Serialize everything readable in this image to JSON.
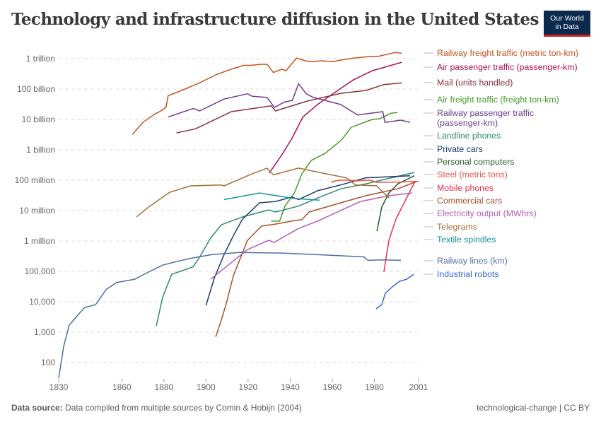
{
  "title": "Technology and infrastructure diffusion in the United States",
  "logo": {
    "line1": "Our World",
    "line2": "in Data",
    "bg": "#0b2a4e",
    "accent": "#ce261e"
  },
  "footer": {
    "source_label": "Data source:",
    "source_text": "Data compiled from multiple sources by Comin & Hobijn (2004)",
    "right": "technological-change | CC BY"
  },
  "chart_data": {
    "type": "line",
    "title": "Technology and infrastructure diffusion in the United States",
    "y_scale": "log",
    "ylim": [
      100,
      1000000000000
    ],
    "xlim": [
      1830,
      2001
    ],
    "grid": "horizontal dashed",
    "legend": "right (line-end labels)",
    "y_ticks": [
      {
        "value": 1000000000000,
        "label": "1 trillion"
      },
      {
        "value": 100000000000,
        "label": "100 billion"
      },
      {
        "value": 10000000000,
        "label": "10 billion"
      },
      {
        "value": 1000000000,
        "label": "1 billion"
      },
      {
        "value": 100000000,
        "label": "100 million"
      },
      {
        "value": 10000000,
        "label": "10 million"
      },
      {
        "value": 1000000,
        "label": "1 million"
      },
      {
        "value": 100000,
        "label": "100,000"
      },
      {
        "value": 10000,
        "label": "10,000"
      },
      {
        "value": 1000,
        "label": "1,000"
      },
      {
        "value": 100,
        "label": "100"
      }
    ],
    "x_ticks": [
      "1830",
      "1860",
      "1880",
      "1900",
      "1920",
      "1940",
      "1960",
      "1980",
      "2001"
    ],
    "series": [
      {
        "name": "Railway freight traffic (metric ton-km)",
        "color": "#c5531e",
        "points": [
          [
            1865,
            3200000000.0
          ],
          [
            1870,
            8000000000.0
          ],
          [
            1875,
            14000000000.0
          ],
          [
            1879,
            20000000000.0
          ],
          [
            1881,
            25000000000.0
          ],
          [
            1882,
            60000000000.0
          ],
          [
            1890,
            100000000000.0
          ],
          [
            1897,
            160000000000.0
          ],
          [
            1905,
            300000000000.0
          ],
          [
            1912,
            450000000000.0
          ],
          [
            1918,
            600000000000.0
          ],
          [
            1921,
            600000000000.0
          ],
          [
            1926,
            650000000000.0
          ],
          [
            1929,
            650000000000.0
          ],
          [
            1932,
            350000000000.0
          ],
          [
            1936,
            450000000000.0
          ],
          [
            1938,
            400000000000.0
          ],
          [
            1943,
            1050000000000.0
          ],
          [
            1947,
            850000000000.0
          ],
          [
            1950,
            800000000000.0
          ],
          [
            1955,
            850000000000.0
          ],
          [
            1960,
            800000000000.0
          ],
          [
            1968,
            1000000000000.0
          ],
          [
            1976,
            1150000000000.0
          ],
          [
            1982,
            1200000000000.0
          ],
          [
            1990,
            1600000000000.0
          ],
          [
            1993,
            1500000000000.0
          ]
        ]
      },
      {
        "name": "Air passenger traffic (passenger-km)",
        "color": "#a8105a",
        "points": [
          [
            1930,
            170000000.0
          ],
          [
            1936.5,
            760000000.0
          ],
          [
            1941,
            2500000000.0
          ],
          [
            1946,
            12000000000.0
          ],
          [
            1953,
            31000000000.0
          ],
          [
            1964,
            105000000000.0
          ],
          [
            1970,
            200000000000.0
          ],
          [
            1979,
            400000000000.0
          ],
          [
            1993,
            760000000000.0
          ]
        ]
      },
      {
        "name": "Mail (units handled)",
        "color": "#883039",
        "points": [
          [
            1886,
            3600000000.0
          ],
          [
            1895,
            4900000000.0
          ],
          [
            1912,
            18000000000.0
          ],
          [
            1931,
            28000000000.0
          ],
          [
            1933,
            19000000000.0
          ],
          [
            1948,
            40000000000.0
          ],
          [
            1964,
            72000000000.0
          ],
          [
            1976,
            90000000000.0
          ],
          [
            1984.5,
            140000000000.0
          ],
          [
            1993,
            160000000000.0
          ]
        ]
      },
      {
        "name": "Air freight traffic (freight ton-km)",
        "color": "#4c9a2a",
        "points": [
          [
            1931,
            4500000.0
          ],
          [
            1935,
            4500000.0
          ],
          [
            1937.5,
            14000000.0
          ],
          [
            1942,
            38000000.0
          ],
          [
            1945.5,
            160000000.0
          ],
          [
            1950,
            450000000.0
          ],
          [
            1956.6,
            760000000.0
          ],
          [
            1964.4,
            2100000000.0
          ],
          [
            1969,
            5500000000.0
          ],
          [
            1979,
            10000000000.0
          ],
          [
            1982.5,
            10500000000.0
          ],
          [
            1988,
            16000000000.0
          ],
          [
            1991,
            17000000000.0
          ]
        ]
      },
      {
        "name": "Railway passenger traffic (passenger-km)",
        "color": "#6d3e91",
        "points": [
          [
            1882,
            12000000000.0
          ],
          [
            1894,
            23000000000.0
          ],
          [
            1897,
            19000000000.0
          ],
          [
            1908.6,
            47000000000.0
          ],
          [
            1919.7,
            70000000000.0
          ],
          [
            1922,
            58000000000.0
          ],
          [
            1929,
            53000000000.0
          ],
          [
            1932.5,
            25000000000.0
          ],
          [
            1937.5,
            38000000000.0
          ],
          [
            1941,
            42000000000.0
          ],
          [
            1944,
            150000000000.0
          ],
          [
            1947.6,
            70000000000.0
          ],
          [
            1951,
            53000000000.0
          ],
          [
            1964,
            31000000000.0
          ],
          [
            1972,
            14000000000.0
          ],
          [
            1984,
            18000000000.0
          ],
          [
            1985,
            8000000000.0
          ],
          [
            1992.6,
            9500000000.0
          ],
          [
            1997,
            8000000000.0
          ]
        ]
      },
      {
        "name": "Landline phones",
        "color": "#2e8d6b",
        "points": [
          [
            1876.4,
            1600.0
          ],
          [
            1879.4,
            14000.0
          ],
          [
            1883.7,
            80000.0
          ],
          [
            1893.8,
            140000.0
          ],
          [
            1897.2,
            310000.0
          ],
          [
            1902,
            1200000.0
          ],
          [
            1907.3,
            3400000.0
          ],
          [
            1917.3,
            6200000.0
          ],
          [
            1929.8,
            10500000.0
          ],
          [
            1933,
            9000000.0
          ],
          [
            1944,
            14000000.0
          ],
          [
            1953,
            26000000.0
          ],
          [
            1964,
            52000000.0
          ],
          [
            1976,
            76000000.0
          ],
          [
            1999,
            180000000.0
          ]
        ]
      },
      {
        "name": "Private cars",
        "color": "#1a3a6b",
        "points": [
          [
            1900,
            7600.0
          ],
          [
            1904,
            62000.0
          ],
          [
            1908.6,
            360000.0
          ],
          [
            1913,
            1500000.0
          ],
          [
            1917.3,
            5200000.0
          ],
          [
            1925.4,
            18000000.0
          ],
          [
            1933,
            20000000.0
          ],
          [
            1940.8,
            28000000.0
          ],
          [
            1944,
            23000000.0
          ],
          [
            1953,
            45000000.0
          ],
          [
            1964,
            70000000.0
          ],
          [
            1976,
            120000000.0
          ],
          [
            1997,
            140000000.0
          ]
        ]
      },
      {
        "name": "Personal computers",
        "color": "#225c22",
        "points": [
          [
            1981.2,
            2100000.0
          ],
          [
            1983.5,
            13000000.0
          ],
          [
            1986.9,
            38000000.0
          ],
          [
            1991.2,
            76000000.0
          ],
          [
            1999,
            140000000.0
          ]
        ]
      },
      {
        "name": "Steel (metric tons)",
        "color": "#e0574a",
        "points": [
          [
            1959.3,
            85000000.0
          ],
          [
            1963,
            100000000.0
          ],
          [
            1969,
            100000000.0
          ],
          [
            1971,
            95000000.0
          ],
          [
            1977.8,
            100000000.0
          ],
          [
            1981,
            85000000.0
          ],
          [
            1992.6,
            87000000.0
          ],
          [
            1998,
            92000000.0
          ],
          [
            2001,
            90000000.0
          ]
        ]
      },
      {
        "name": "Mobile phones",
        "color": "#e6304b",
        "points": [
          [
            1984.5,
            95000.0
          ],
          [
            1986.9,
            1050000.0
          ],
          [
            1990.2,
            5200000.0
          ],
          [
            1995.3,
            26000000.0
          ],
          [
            1999.3,
            90000000.0
          ]
        ]
      },
      {
        "name": "Commercial cars",
        "color": "#a4522a",
        "points": [
          [
            1904.6,
            700.0
          ],
          [
            1907,
            2200.0
          ],
          [
            1909.6,
            8500.0
          ],
          [
            1913,
            72000.0
          ],
          [
            1919.7,
            1050000.0
          ],
          [
            1926.4,
            3100000.0
          ],
          [
            1933,
            3600000.0
          ],
          [
            1942,
            4700000.0
          ],
          [
            1945.5,
            5000000.0
          ],
          [
            1949,
            9000000.0
          ],
          [
            1964,
            18000000.0
          ],
          [
            1976,
            31000000.0
          ],
          [
            1991,
            52000000.0
          ],
          [
            2000,
            90000000.0
          ]
        ]
      },
      {
        "name": "Electricity output (MWhrs)",
        "color": "#b35db6",
        "points": [
          [
            1902.2,
            55000.0
          ],
          [
            1919.7,
            520000.0
          ],
          [
            1929.8,
            1050000.0
          ],
          [
            1932.4,
            900000.0
          ],
          [
            1944,
            2600000.0
          ],
          [
            1953,
            4500000.0
          ],
          [
            1959,
            7000000.0
          ],
          [
            1973.4,
            20000000.0
          ],
          [
            1987,
            31000000.0
          ],
          [
            1998,
            38000000.0
          ]
        ]
      },
      {
        "name": "Telegrams",
        "color": "#a2703a",
        "points": [
          [
            1867,
            6200000.0
          ],
          [
            1872.7,
            13000000.0
          ],
          [
            1882.7,
            40000000.0
          ],
          [
            1892.8,
            65000000.0
          ],
          [
            1907,
            70000000.0
          ],
          [
            1908.6,
            65000000.0
          ],
          [
            1920.7,
            150000000.0
          ],
          [
            1929,
            250000000.0
          ],
          [
            1932,
            150000000.0
          ],
          [
            1944,
            250000000.0
          ],
          [
            1955.6,
            170000000.0
          ],
          [
            1966.7,
            120000000.0
          ],
          [
            1971,
            70000000.0
          ],
          [
            1981,
            65000000.0
          ],
          [
            1987,
            26000000.0
          ]
        ]
      },
      {
        "name": "Textile spindles",
        "color": "#18929a",
        "points": [
          [
            1908.6,
            23000000.0
          ],
          [
            1925.4,
            38000000.0
          ],
          [
            1942,
            25000000.0
          ],
          [
            1954,
            22000000.0
          ]
        ]
      },
      {
        "name": "Railway lines (km)",
        "color": "#4e6fa3",
        "points": [
          [
            1830,
            31
          ],
          [
            1832.4,
            340
          ],
          [
            1835,
            1700.0
          ],
          [
            1839,
            3600.0
          ],
          [
            1842.4,
            6500.0
          ],
          [
            1847.5,
            8000.0
          ],
          [
            1852.5,
            25000.0
          ],
          [
            1857.5,
            43000.0
          ],
          [
            1866,
            55000.0
          ],
          [
            1872.7,
            95000.0
          ],
          [
            1879.4,
            160000.0
          ],
          [
            1886,
            210000.0
          ],
          [
            1892.8,
            270000.0
          ],
          [
            1903,
            360000.0
          ],
          [
            1916,
            420000.0
          ],
          [
            1936.5,
            400000.0
          ],
          [
            1963,
            330000.0
          ],
          [
            1975,
            300000.0
          ],
          [
            1977,
            230000.0
          ],
          [
            1983.5,
            240000.0
          ],
          [
            1992.6,
            230000.0
          ]
        ]
      },
      {
        "name": "Industrial robots",
        "color": "#3366cc",
        "points": [
          [
            1980.8,
            5900.0
          ],
          [
            1983.5,
            8000.0
          ],
          [
            1985.2,
            19000.0
          ],
          [
            1988.5,
            31000.0
          ],
          [
            1992,
            47000.0
          ],
          [
            1995.3,
            55000.0
          ],
          [
            1998,
            74000.0
          ],
          [
            1998.6,
            80000.0
          ]
        ]
      }
    ]
  }
}
